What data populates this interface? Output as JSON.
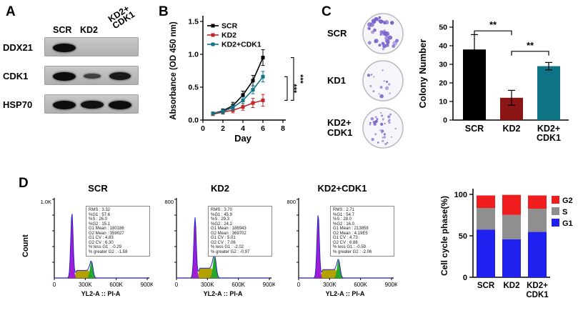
{
  "panels": {
    "A": "A",
    "B": "B",
    "C": "C",
    "D": "D"
  },
  "panelA": {
    "lane1": "SCR",
    "lane2": "KD2",
    "lane3_line1": "KD2+",
    "lane3_line2": "CDK1",
    "rows": [
      {
        "name": "DDX21",
        "bands": [
          1,
          0,
          0
        ]
      },
      {
        "name": "CDK1",
        "bands": [
          1,
          0.4,
          0.85
        ]
      },
      {
        "name": "HSP70",
        "bands": [
          1,
          0.95,
          1
        ]
      }
    ]
  },
  "panelC": {
    "colony_color": "#7a63c9",
    "plates": [
      {
        "label_lines": [
          "SCR"
        ],
        "colonies": 44,
        "rmin": 1.3,
        "rmax": 3.4,
        "seed": 7
      },
      {
        "label_lines": [
          "KD1"
        ],
        "colonies": 14,
        "rmin": 1.0,
        "rmax": 2.8,
        "seed": 13
      },
      {
        "label_lines": [
          "KD2+",
          "CDK1"
        ],
        "colonies": 36,
        "rmin": 0.9,
        "rmax": 2.2,
        "seed": 29
      }
    ]
  },
  "panelD": {
    "count_label": "Count",
    "xlabel": "YL2-A :: PI-A",
    "xticks": [
      "0",
      "300K",
      "600K",
      "900K"
    ],
    "flow": [
      {
        "title": "SCR",
        "ymax_label": "1.0K",
        "stats": [
          "RMS : 3.32",
          "%G1 : 57.6",
          "%S : 26.0",
          "%G2 : 15.1",
          "G1 Mean : 180186",
          "G2 Mean : 359027",
          "G1 CV : 4.83",
          "G2 CV : 6.30",
          "% less G1 : -0.29",
          "% greater G2 : -1.59"
        ]
      },
      {
        "title": "KD2",
        "ymax_label": "800",
        "stats": [
          "RMS : 3.70",
          "%G1 : 45.9",
          "%S : 29.3",
          "%G2 : 24.2",
          "G1 Mean : 186943",
          "G2 Mean : 369702",
          "G1 CV : 5.01",
          "G2 CV : 7.06",
          "% less G1 : -2.02",
          "% greater G2 : -0.97"
        ]
      },
      {
        "title": "KD2+CDK1",
        "ymax_label": "800",
        "stats": [
          "RMS : 2.71",
          "%G1 : 54.7",
          "%S : 28.0",
          "%G2 : 16.0",
          "G1 Mean : 213858",
          "G2 Mean : 4.19E5",
          "G1 CV : 4.73",
          "G2 CV : 6.88",
          "% less G1 : -0.59",
          "% greater G2 : -2.06"
        ]
      }
    ]
  },
  "chart_data": [
    {
      "id": "proliferation",
      "type": "line",
      "xlabel": "Day",
      "ylabel": "Absorbance (OD 450 nm)",
      "xlim": [
        0,
        8
      ],
      "ylim": [
        0,
        1.5
      ],
      "xticks": [
        0,
        2,
        4,
        6,
        8
      ],
      "yticks": [
        0,
        0.5,
        1,
        1.5
      ],
      "x": [
        1,
        2,
        3,
        4,
        5,
        6
      ],
      "series": [
        {
          "name": "SCR",
          "color": "#000000",
          "values": [
            0.1,
            0.14,
            0.22,
            0.38,
            0.6,
            0.95
          ],
          "errors": [
            0.02,
            0.03,
            0.05,
            0.06,
            0.08,
            0.12
          ]
        },
        {
          "name": "KD2",
          "color": "#c0272d",
          "values": [
            0.09,
            0.12,
            0.15,
            0.2,
            0.26,
            0.3
          ],
          "errors": [
            0.02,
            0.03,
            0.04,
            0.05,
            0.07,
            0.09
          ]
        },
        {
          "name": "KD2+CDK1",
          "color": "#0f7386",
          "values": [
            0.1,
            0.13,
            0.19,
            0.3,
            0.46,
            0.66
          ],
          "errors": [
            0.02,
            0.03,
            0.04,
            0.05,
            0.06,
            0.08
          ]
        }
      ],
      "legend_position": "top-left",
      "sig": [
        {
          "between": [
            "KD2+CDK1",
            "KD2"
          ],
          "label": "***"
        },
        {
          "between": [
            "SCR",
            "KD2"
          ],
          "label": "***"
        }
      ]
    },
    {
      "id": "colony",
      "type": "bar",
      "categories": [
        "SCR",
        "KD2",
        "KD2+\nCDK1"
      ],
      "values": [
        38,
        12,
        29
      ],
      "errors": [
        8,
        4,
        2
      ],
      "bar_colors": [
        "#000000",
        "#8c1616",
        "#0f7386"
      ],
      "ylabel": "Colony Number",
      "ylim": [
        0,
        50
      ],
      "yticks": [
        0,
        10,
        20,
        30,
        40,
        50
      ],
      "sig": [
        {
          "from": 0,
          "to": 1,
          "label": "**",
          "y": 48
        },
        {
          "from": 1,
          "to": 2,
          "label": "**",
          "y": 37
        }
      ]
    },
    {
      "id": "flow_scr",
      "type": "histogram",
      "g1": {
        "pos": 0.19,
        "h": 0.86,
        "w": 0.013
      },
      "s": {
        "h": 0.1
      },
      "g2": {
        "pos": 0.4,
        "h": 0.22,
        "w": 0.016
      }
    },
    {
      "id": "flow_kd2",
      "type": "histogram",
      "g1": {
        "pos": 0.2,
        "h": 0.8,
        "w": 0.013
      },
      "s": {
        "h": 0.13
      },
      "g2": {
        "pos": 0.41,
        "h": 0.3,
        "w": 0.017
      }
    },
    {
      "id": "flow_kd2cdk1",
      "type": "histogram",
      "g1": {
        "pos": 0.21,
        "h": 0.84,
        "w": 0.013
      },
      "s": {
        "h": 0.11
      },
      "g2": {
        "pos": 0.43,
        "h": 0.24,
        "w": 0.016
      }
    },
    {
      "id": "cell_cycle",
      "type": "stacked_bar",
      "categories": [
        "SCR",
        "KD2",
        "KD2+\nCDK1"
      ],
      "series": [
        {
          "name": "G1",
          "color": "#2121ef",
          "values": [
            57.6,
            45.9,
            54.7
          ]
        },
        {
          "name": "S",
          "color": "#8f8f8f",
          "values": [
            26.0,
            29.3,
            28.0
          ]
        },
        {
          "name": "G2",
          "color": "#ef1d1d",
          "values": [
            15.1,
            24.2,
            16.0
          ]
        }
      ],
      "legend_order": [
        "G2",
        "S",
        "G1"
      ],
      "ylabel": "Cell cycle phase(%)",
      "ylim": [
        0,
        100
      ],
      "yticks": [
        0,
        50,
        100
      ]
    }
  ]
}
